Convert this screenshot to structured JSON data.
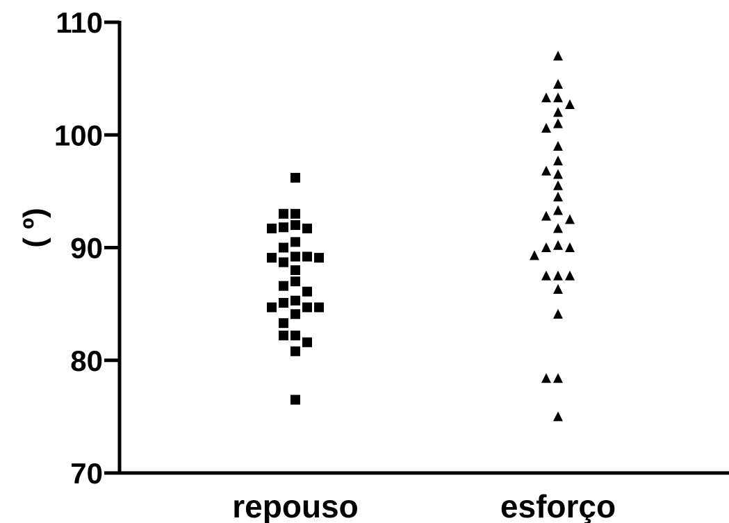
{
  "chart_data": {
    "type": "scatter",
    "title": "",
    "xlabel": "",
    "ylabel": "( º)",
    "ylim": [
      70,
      110
    ],
    "yticks": [
      70,
      80,
      90,
      100,
      110
    ],
    "categories": [
      "repouso",
      "esforço"
    ],
    "grid": false,
    "legend": "none",
    "series": [
      {
        "category": "repouso",
        "marker": "square",
        "color": "#000000",
        "values": [
          96.2,
          93.0,
          93.0,
          92.0,
          91.8,
          91.7,
          91.7,
          90.5,
          90.0,
          89.2,
          89.2,
          89.1,
          89.1,
          88.7,
          88.0,
          87.0,
          86.6,
          86.1,
          85.3,
          85.1,
          84.7,
          84.7,
          84.7,
          84.1,
          83.3,
          82.2,
          82.2,
          81.6,
          80.8,
          76.5
        ]
      },
      {
        "category": "esforço",
        "marker": "triangle",
        "color": "#000000",
        "values": [
          107.0,
          104.5,
          103.3,
          103.3,
          102.7,
          102.0,
          101.0,
          100.6,
          99.0,
          97.7,
          96.8,
          96.5,
          95.5,
          94.5,
          93.3,
          92.8,
          92.5,
          91.7,
          90.2,
          90.0,
          90.0,
          89.3,
          87.5,
          87.5,
          87.5,
          86.3,
          84.1,
          78.4,
          78.4,
          75.0
        ]
      }
    ]
  }
}
